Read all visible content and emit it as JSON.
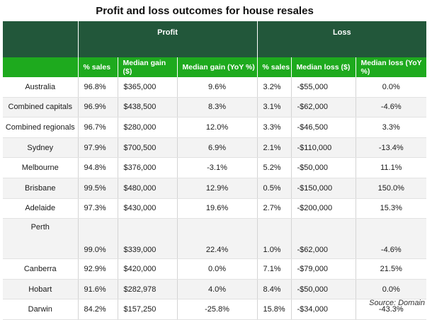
{
  "title": "Profit and loss outcomes for house resales",
  "group_headers": {
    "profit": "Profit",
    "loss": "Loss"
  },
  "columns": [
    "% sales",
    "Median gain ($)",
    "Median gain (YoY %)",
    "% sales",
    "Median loss ($)",
    "Median loss (YoY %)"
  ],
  "rows": [
    {
      "region": "Australia",
      "profit_pct": "96.8%",
      "gain": "$365,000",
      "gain_yoy": "9.6%",
      "loss_pct": "3.2%",
      "loss": "-$55,000",
      "loss_yoy": "0.0%"
    },
    {
      "region": "Combined capitals",
      "profit_pct": "96.9%",
      "gain": "$438,500",
      "gain_yoy": "8.3%",
      "loss_pct": "3.1%",
      "loss": "-$62,000",
      "loss_yoy": "-4.6%"
    },
    {
      "region": "Combined regionals",
      "profit_pct": "96.7%",
      "gain": "$280,000",
      "gain_yoy": "12.0%",
      "loss_pct": "3.3%",
      "loss": "-$46,500",
      "loss_yoy": "3.3%"
    },
    {
      "region": "Sydney",
      "profit_pct": "97.9%",
      "gain": "$700,500",
      "gain_yoy": "6.9%",
      "loss_pct": "2.1%",
      "loss": "-$110,000",
      "loss_yoy": "-13.4%"
    },
    {
      "region": "Melbourne",
      "profit_pct": "94.8%",
      "gain": "$376,000",
      "gain_yoy": "-3.1%",
      "loss_pct": "5.2%",
      "loss": "-$50,000",
      "loss_yoy": "11.1%"
    },
    {
      "region": "Brisbane",
      "profit_pct": "99.5%",
      "gain": "$480,000",
      "gain_yoy": "12.9%",
      "loss_pct": "0.5%",
      "loss": "-$150,000",
      "loss_yoy": "150.0%"
    },
    {
      "region": "Adelaide",
      "profit_pct": "97.3%",
      "gain": "$430,000",
      "gain_yoy": "19.6%",
      "loss_pct": "2.7%",
      "loss": "-$200,000",
      "loss_yoy": "15.3%"
    },
    {
      "region": "Perth",
      "profit_pct": "99.0%",
      "gain": "$339,000",
      "gain_yoy": "22.4%",
      "loss_pct": "1.0%",
      "loss": "-$62,000",
      "loss_yoy": "-4.6%"
    },
    {
      "region": "Canberra",
      "profit_pct": "92.9%",
      "gain": "$420,000",
      "gain_yoy": "0.0%",
      "loss_pct": "7.1%",
      "loss": "-$79,000",
      "loss_yoy": "21.5%"
    },
    {
      "region": "Hobart",
      "profit_pct": "91.6%",
      "gain": "$282,978",
      "gain_yoy": "4.0%",
      "loss_pct": "8.4%",
      "loss": "-$50,000",
      "loss_yoy": "0.0%"
    },
    {
      "region": "Darwin",
      "profit_pct": "84.2%",
      "gain": "$157,250",
      "gain_yoy": "-25.8%",
      "loss_pct": "15.8%",
      "loss": "-$34,000",
      "loss_yoy": "-43.3%"
    }
  ],
  "source": "Source: Domain",
  "colors": {
    "header_dark": "#22573a",
    "header_bright": "#1eaa1e",
    "row_alt": "#f3f3f3"
  }
}
